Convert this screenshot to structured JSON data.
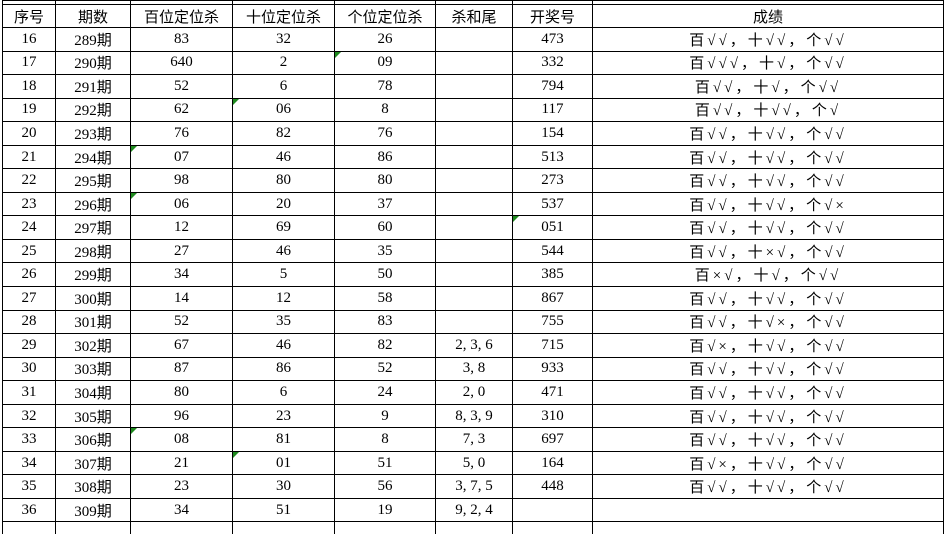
{
  "table": {
    "columns": [
      {
        "key": "index",
        "label": "序号"
      },
      {
        "key": "period",
        "label": "期数"
      },
      {
        "key": "hundreds",
        "label": "百位定位杀"
      },
      {
        "key": "tens",
        "label": "十位定位杀"
      },
      {
        "key": "units",
        "label": "个位定位杀"
      },
      {
        "key": "killtail",
        "label": "杀和尾"
      },
      {
        "key": "draw",
        "label": "开奖号"
      },
      {
        "key": "result",
        "label": "成绩"
      }
    ],
    "rows": [
      {
        "index": "16",
        "period": "289期",
        "hundreds": "83",
        "tens": "32",
        "units": "26",
        "killtail": "",
        "draw": "473",
        "result": "百√√，十√√，个√√",
        "text_flags": []
      },
      {
        "index": "17",
        "period": "290期",
        "hundreds": "640",
        "tens": "2",
        "units": "09",
        "killtail": "",
        "draw": "332",
        "result": "百√√√，十√，个√√",
        "text_flags": [
          "units"
        ]
      },
      {
        "index": "18",
        "period": "291期",
        "hundreds": "52",
        "tens": "6",
        "units": "78",
        "killtail": "",
        "draw": "794",
        "result": "百√√，十√，个√√",
        "text_flags": []
      },
      {
        "index": "19",
        "period": "292期",
        "hundreds": "62",
        "tens": "06",
        "units": "8",
        "killtail": "",
        "draw": "117",
        "result": "百√√，十√√，个√",
        "text_flags": [
          "tens"
        ]
      },
      {
        "index": "20",
        "period": "293期",
        "hundreds": "76",
        "tens": "82",
        "units": "76",
        "killtail": "",
        "draw": "154",
        "result": "百√√，十√√，个√√",
        "text_flags": []
      },
      {
        "index": "21",
        "period": "294期",
        "hundreds": "07",
        "tens": "46",
        "units": "86",
        "killtail": "",
        "draw": "513",
        "result": "百√√，十√√，个√√",
        "text_flags": [
          "hundreds"
        ]
      },
      {
        "index": "22",
        "period": "295期",
        "hundreds": "98",
        "tens": "80",
        "units": "80",
        "killtail": "",
        "draw": "273",
        "result": "百√√，十√√，个√√",
        "text_flags": []
      },
      {
        "index": "23",
        "period": "296期",
        "hundreds": "06",
        "tens": "20",
        "units": "37",
        "killtail": "",
        "draw": "537",
        "result": "百√√，十√√，个√×",
        "text_flags": [
          "hundreds"
        ]
      },
      {
        "index": "24",
        "period": "297期",
        "hundreds": "12",
        "tens": "69",
        "units": "60",
        "killtail": "",
        "draw": "051",
        "result": "百√√，十√√，个√√",
        "text_flags": [
          "draw"
        ]
      },
      {
        "index": "25",
        "period": "298期",
        "hundreds": "27",
        "tens": "46",
        "units": "35",
        "killtail": "",
        "draw": "544",
        "result": "百√√，十×√，个√√",
        "text_flags": []
      },
      {
        "index": "26",
        "period": "299期",
        "hundreds": "34",
        "tens": "5",
        "units": "50",
        "killtail": "",
        "draw": "385",
        "result": "百×√，十√，个√√",
        "text_flags": []
      },
      {
        "index": "27",
        "period": "300期",
        "hundreds": "14",
        "tens": "12",
        "units": "58",
        "killtail": "",
        "draw": "867",
        "result": "百√√，十√√，个√√",
        "text_flags": []
      },
      {
        "index": "28",
        "period": "301期",
        "hundreds": "52",
        "tens": "35",
        "units": "83",
        "killtail": "",
        "draw": "755",
        "result": "百√√，十√×，个√√",
        "text_flags": []
      },
      {
        "index": "29",
        "period": "302期",
        "hundreds": "67",
        "tens": "46",
        "units": "82",
        "killtail": "2, 3, 6",
        "draw": "715",
        "result": "百√×，十√√，个√√",
        "text_flags": []
      },
      {
        "index": "30",
        "period": "303期",
        "hundreds": "87",
        "tens": "86",
        "units": "52",
        "killtail": "3, 8",
        "draw": "933",
        "result": "百√√，十√√，个√√",
        "text_flags": []
      },
      {
        "index": "31",
        "period": "304期",
        "hundreds": "80",
        "tens": "6",
        "units": "24",
        "killtail": "2, 0",
        "draw": "471",
        "result": "百√√，十√√，个√√",
        "text_flags": []
      },
      {
        "index": "32",
        "period": "305期",
        "hundreds": "96",
        "tens": "23",
        "units": "9",
        "killtail": "8, 3, 9",
        "draw": "310",
        "result": "百√√，十√√，个√√",
        "text_flags": []
      },
      {
        "index": "33",
        "period": "306期",
        "hundreds": "08",
        "tens": "81",
        "units": "8",
        "killtail": "7, 3",
        "draw": "697",
        "result": "百√√，十√√，个√√",
        "text_flags": [
          "hundreds"
        ]
      },
      {
        "index": "34",
        "period": "307期",
        "hundreds": "21",
        "tens": "01",
        "units": "51",
        "killtail": "5, 0",
        "draw": "164",
        "result": "百√×，十√√，个√√",
        "text_flags": [
          "tens"
        ]
      },
      {
        "index": "35",
        "period": "308期",
        "hundreds": "23",
        "tens": "30",
        "units": "56",
        "killtail": "3, 7, 5",
        "draw": "448",
        "result": "百√√，十√√，个√√",
        "text_flags": []
      },
      {
        "index": "36",
        "period": "309期",
        "hundreds": "34",
        "tens": "51",
        "units": "19",
        "killtail": "9, 2, 4",
        "draw": "",
        "result": "",
        "text_flags": []
      }
    ]
  },
  "colors": {
    "result_red": "#ff3232",
    "grid_black": "#000000",
    "triangle_green": "#1e8a1e",
    "background": "#ffffff"
  }
}
